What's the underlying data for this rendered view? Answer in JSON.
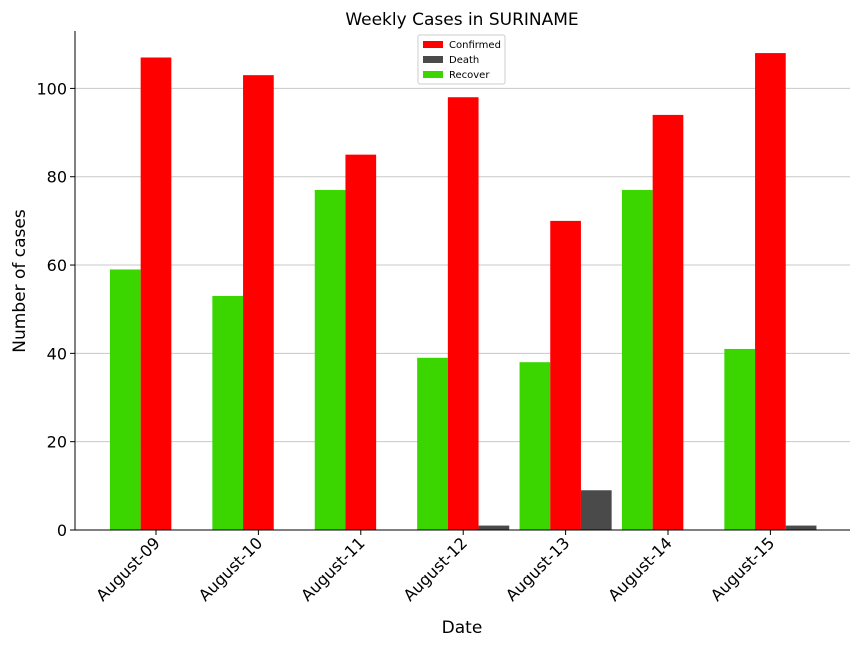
{
  "chart_data": {
    "type": "bar",
    "title": "Weekly Cases in SURINAME",
    "xlabel": "Date",
    "ylabel": "Number of cases",
    "categories": [
      "August-09",
      "August-10",
      "August-11",
      "August-12",
      "August-13",
      "August-14",
      "August-15"
    ],
    "series": [
      {
        "name": "Recover",
        "color": "#3bd600",
        "values": [
          59,
          53,
          77,
          39,
          38,
          77,
          41
        ]
      },
      {
        "name": "Confirmed",
        "color": "#ff0000",
        "values": [
          107,
          103,
          85,
          98,
          70,
          94,
          108
        ]
      },
      {
        "name": "Death",
        "color": "#4a4a4a",
        "values": [
          0,
          0,
          0,
          1,
          9,
          0,
          1
        ]
      }
    ],
    "legend_order": [
      "Confirmed",
      "Death",
      "Recover"
    ],
    "ylim": [
      0,
      113
    ],
    "yticks": [
      0,
      20,
      40,
      60,
      80,
      100
    ],
    "grid": "horizontal",
    "legend_position": "top-center"
  }
}
